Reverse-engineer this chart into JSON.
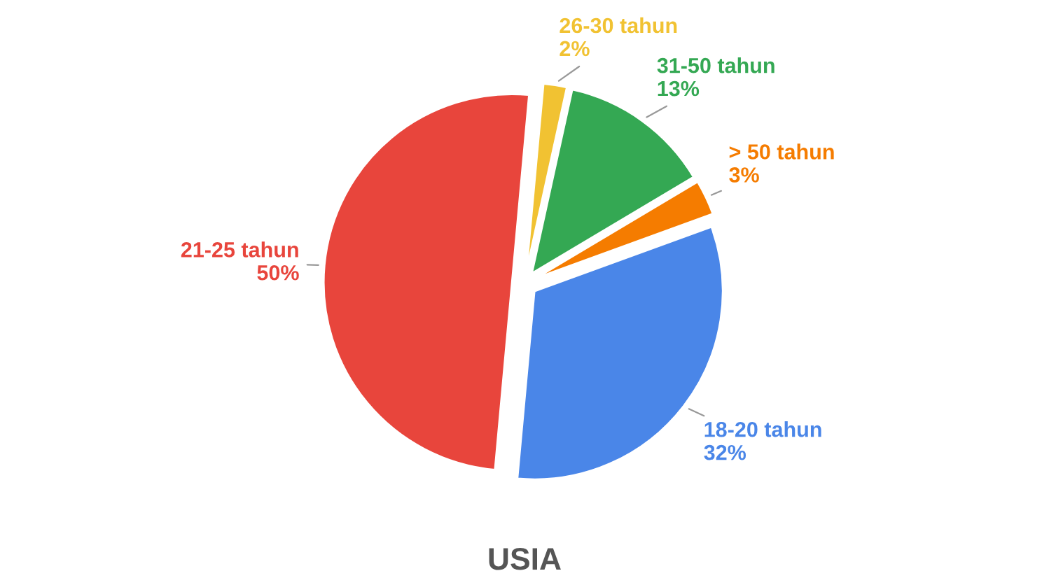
{
  "chart_data": {
    "type": "pie",
    "title": "USIA",
    "categories": [
      "18-20 tahun",
      "21-25 tahun",
      "26-30 tahun",
      "31-50 tahun",
      "> 50 tahun"
    ],
    "values": [
      32,
      50,
      2,
      13,
      3
    ],
    "value_labels": [
      "32%",
      "50%",
      "2%",
      "13%",
      "3%"
    ],
    "colors": [
      "#4a86e8",
      "#e8453c",
      "#f1c232",
      "#34a853",
      "#f57c00"
    ],
    "legend": false
  }
}
